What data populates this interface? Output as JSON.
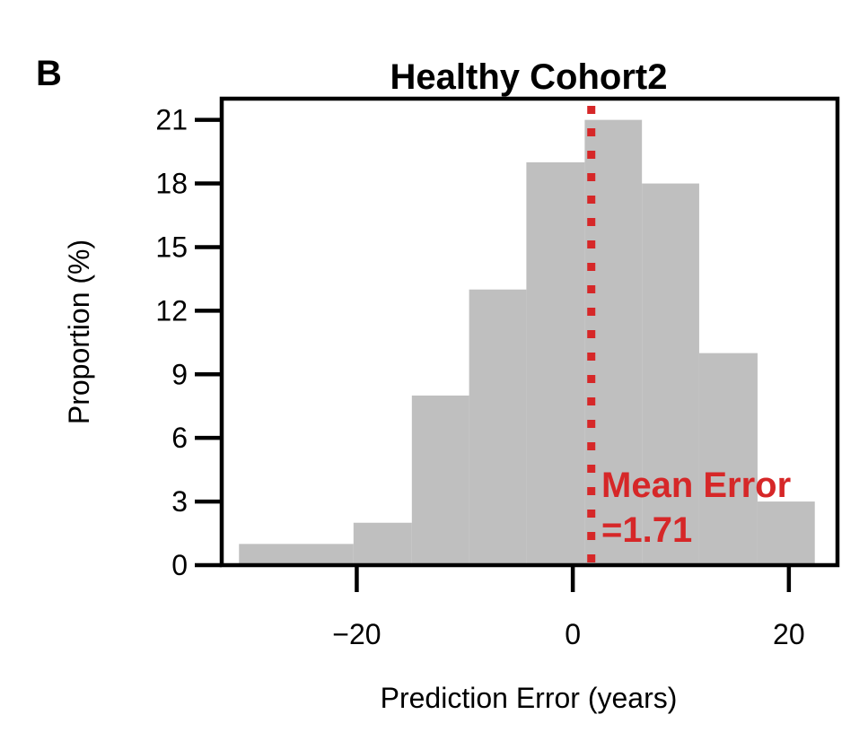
{
  "panel_label": "B",
  "chart_data": {
    "type": "bar",
    "title": "Healthy Cohort2",
    "xlabel": "Prediction Error (years)",
    "ylabel": "Proportion (%)",
    "xlim": [
      -32.5,
      24.5
    ],
    "ylim": [
      0,
      22
    ],
    "yticks": [
      0,
      3,
      6,
      9,
      12,
      15,
      18,
      21
    ],
    "ytick_labels": [
      "0",
      "3",
      "6",
      "9",
      "12",
      "15",
      "18",
      "21"
    ],
    "xticks": [
      -20,
      0,
      20
    ],
    "xtick_labels": [
      "−20",
      "0",
      "20"
    ],
    "bins": [
      {
        "x0": -30.9,
        "x1": -20.3,
        "value": 1
      },
      {
        "x0": -20.3,
        "x1": -14.9,
        "value": 2
      },
      {
        "x0": -14.9,
        "x1": -9.6,
        "value": 8
      },
      {
        "x0": -9.6,
        "x1": -4.3,
        "value": 13
      },
      {
        "x0": -4.3,
        "x1": 1.1,
        "value": 19
      },
      {
        "x0": 1.1,
        "x1": 6.4,
        "value": 21
      },
      {
        "x0": 6.4,
        "x1": 11.7,
        "value": 18
      },
      {
        "x0": 11.7,
        "x1": 17.1,
        "value": 10
      },
      {
        "x0": 17.1,
        "x1": 22.4,
        "value": 3
      }
    ],
    "bar_color": "#bfbfbf",
    "mean_error": 1.71,
    "mean_line_color": "#d62728",
    "annotation_line1": "Mean Error",
    "annotation_line2": "=1.71",
    "grid": false
  }
}
